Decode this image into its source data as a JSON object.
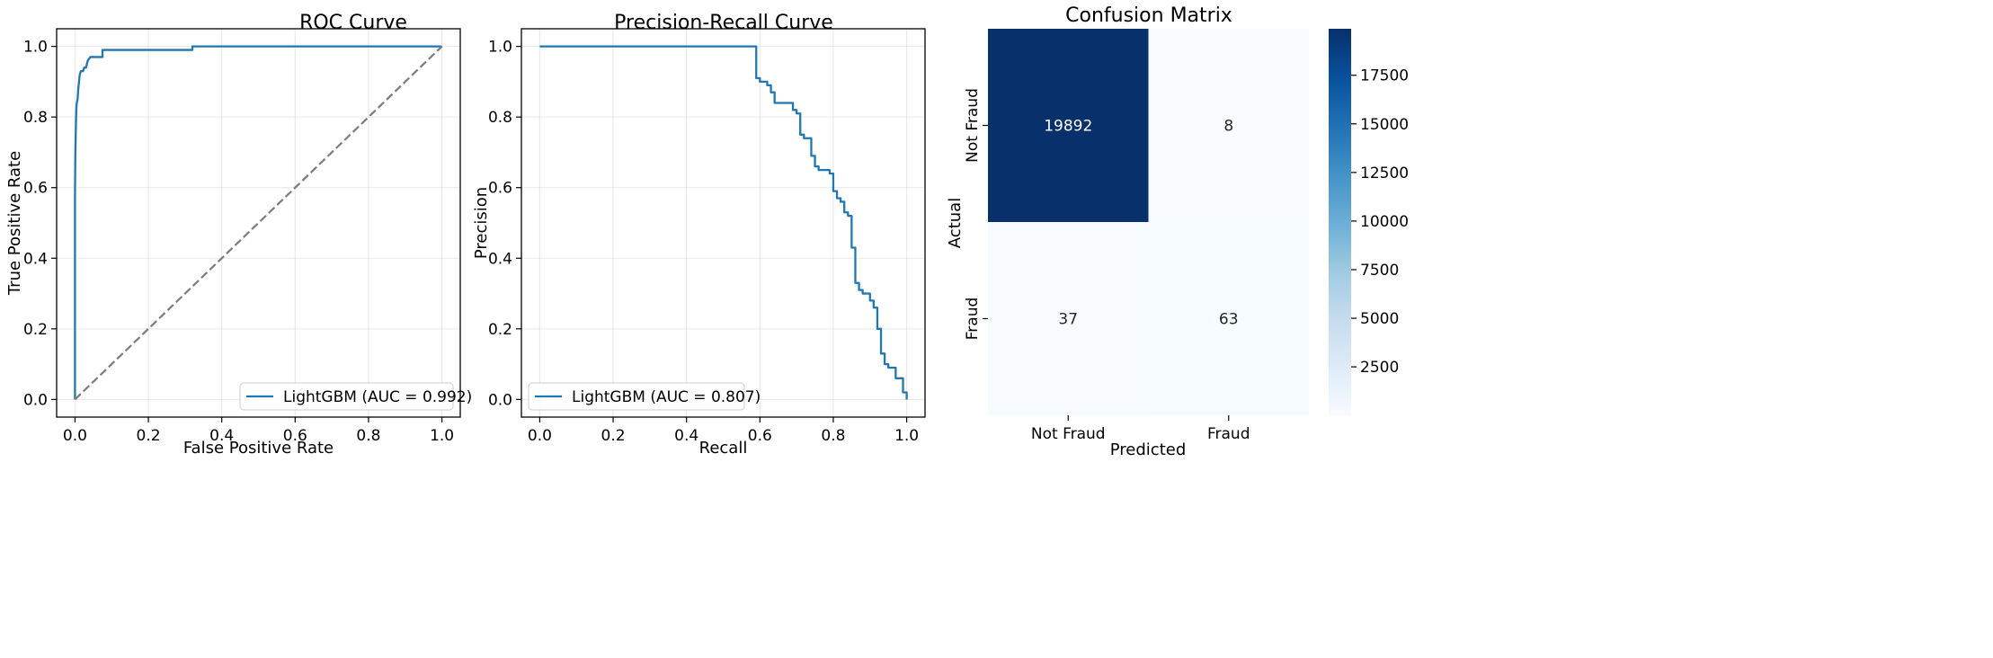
{
  "chart_data": [
    {
      "type": "line",
      "title": "ROC Curve",
      "xlabel": "False Positive Rate",
      "ylabel": "True Positive Rate",
      "xlim": [
        -0.05,
        1.05
      ],
      "ylim": [
        -0.05,
        1.05
      ],
      "xticks": [
        0.0,
        0.2,
        0.4,
        0.6,
        0.8,
        1.0
      ],
      "yticks": [
        0.0,
        0.2,
        0.4,
        0.6,
        0.8,
        1.0
      ],
      "xtick_labels": [
        "0.0",
        "0.2",
        "0.4",
        "0.6",
        "0.8",
        "1.0"
      ],
      "ytick_labels": [
        "0.0",
        "0.2",
        "0.4",
        "0.6",
        "0.8",
        "1.0"
      ],
      "grid": true,
      "legend_position": "lower-right",
      "series": [
        {
          "name": "LightGBM (AUC = 0.992)",
          "color": "#1f77b4",
          "style": "solid",
          "x": [
            0,
            0,
            0.001,
            0.002,
            0.003,
            0.004,
            0.005,
            0.007,
            0.009,
            0.011,
            0.013,
            0.016,
            0.019,
            0.022,
            0.025,
            0.03,
            0.035,
            0.042,
            0.05,
            0.06,
            0.075,
            0.075,
            0.1,
            0.32,
            0.32,
            0.5,
            1.0
          ],
          "y": [
            0,
            0.58,
            0.7,
            0.75,
            0.8,
            0.83,
            0.84,
            0.85,
            0.88,
            0.9,
            0.92,
            0.93,
            0.93,
            0.93,
            0.94,
            0.94,
            0.96,
            0.97,
            0.97,
            0.97,
            0.97,
            0.99,
            0.99,
            0.99,
            1.0,
            1.0,
            1.0
          ]
        },
        {
          "color": "#7f7f7f",
          "style": "dashed",
          "x": [
            0,
            1
          ],
          "y": [
            0,
            1
          ]
        }
      ]
    },
    {
      "type": "line",
      "title": "Precision-Recall Curve",
      "xlabel": "Recall",
      "ylabel": "Precision",
      "xlim": [
        -0.05,
        1.05
      ],
      "ylim": [
        -0.05,
        1.05
      ],
      "xticks": [
        0.0,
        0.2,
        0.4,
        0.6,
        0.8,
        1.0
      ],
      "yticks": [
        0.0,
        0.2,
        0.4,
        0.6,
        0.8,
        1.0
      ],
      "xtick_labels": [
        "0.0",
        "0.2",
        "0.4",
        "0.6",
        "0.8",
        "1.0"
      ],
      "ytick_labels": [
        "0.0",
        "0.2",
        "0.4",
        "0.6",
        "0.8",
        "1.0"
      ],
      "grid": true,
      "legend_position": "lower-left",
      "series": [
        {
          "name": "LightGBM (AUC = 0.807)",
          "color": "#1f77b4",
          "style": "step",
          "x": [
            0.0,
            0.59,
            0.59,
            0.6,
            0.62,
            0.63,
            0.64,
            0.66,
            0.67,
            0.68,
            0.69,
            0.7,
            0.71,
            0.72,
            0.73,
            0.74,
            0.75,
            0.76,
            0.78,
            0.79,
            0.8,
            0.81,
            0.82,
            0.83,
            0.84,
            0.85,
            0.86,
            0.87,
            0.88,
            0.89,
            0.9,
            0.91,
            0.92,
            0.93,
            0.94,
            0.95,
            0.96,
            0.97,
            0.98,
            0.99,
            1.0
          ],
          "y": [
            1.0,
            1.0,
            0.91,
            0.9,
            0.89,
            0.87,
            0.84,
            0.84,
            0.84,
            0.84,
            0.82,
            0.81,
            0.75,
            0.74,
            0.74,
            0.69,
            0.66,
            0.65,
            0.65,
            0.64,
            0.59,
            0.57,
            0.56,
            0.53,
            0.52,
            0.43,
            0.33,
            0.31,
            0.3,
            0.3,
            0.28,
            0.26,
            0.2,
            0.13,
            0.1,
            0.09,
            0.09,
            0.06,
            0.06,
            0.02,
            0.0
          ]
        }
      ]
    },
    {
      "type": "heatmap",
      "title": "Confusion Matrix",
      "xlabel": "Predicted",
      "ylabel": "Actual",
      "x_categories": [
        "Not Fraud",
        "Fraud"
      ],
      "y_categories": [
        "Not Fraud",
        "Fraud"
      ],
      "values": [
        [
          19892,
          8
        ],
        [
          37,
          63
        ]
      ],
      "colormap": "Blues",
      "colorbar": {
        "min": 8,
        "max": 19892,
        "ticks": [
          2500,
          5000,
          7500,
          10000,
          12500,
          15000,
          17500
        ],
        "tick_labels": [
          "2500",
          "5000",
          "7500",
          "10000",
          "12500",
          "15000",
          "17500"
        ]
      }
    }
  ]
}
